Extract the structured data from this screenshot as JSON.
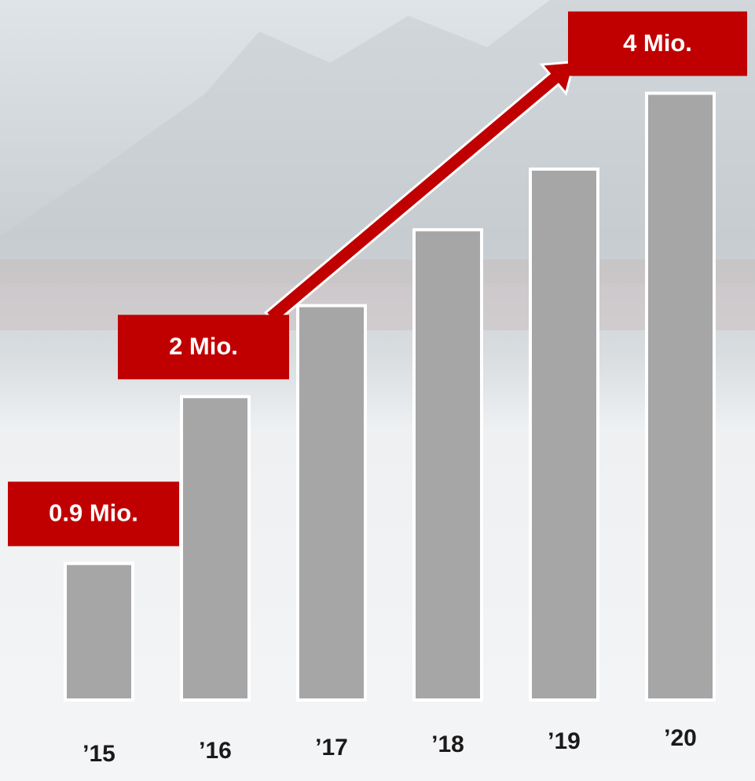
{
  "chart_data": {
    "type": "bar",
    "categories": [
      "’15",
      "’16",
      "’17",
      "’18",
      "’19",
      "’20"
    ],
    "values": [
      0.9,
      2,
      2.6,
      3.1,
      3.5,
      4
    ],
    "value_labels": [
      "0.9 Mio.",
      "2 Mio.",
      null,
      null,
      null,
      "4 Mio."
    ],
    "color": "#a6a6a6",
    "label_color": "#c00000",
    "ylim": [
      0,
      4.2
    ]
  }
}
